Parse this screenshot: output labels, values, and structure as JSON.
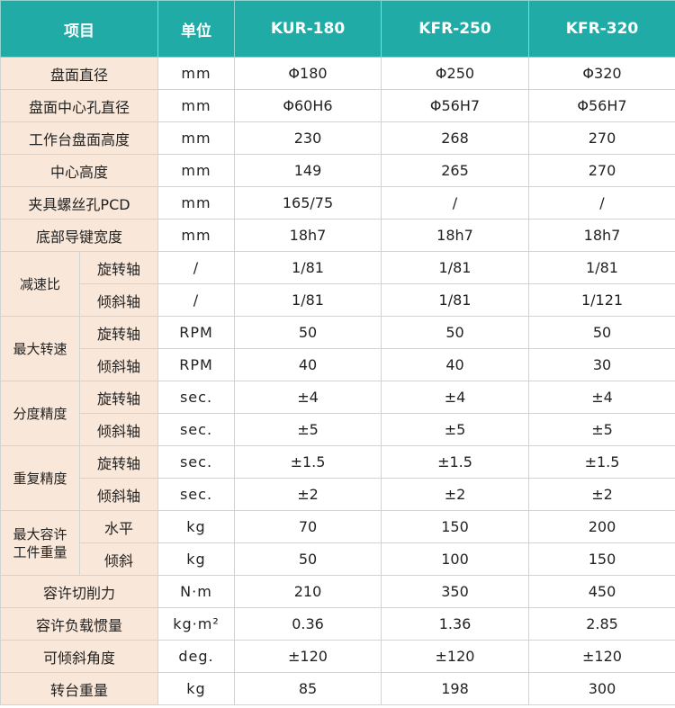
{
  "header": {
    "item": "项目",
    "unit": "单位",
    "models": [
      "KUR-180",
      "KFR-250",
      "KFR-320"
    ]
  },
  "rows": [
    {
      "label": "盘面直径",
      "unit": "mm",
      "values": [
        "Φ180",
        "Φ250",
        "Φ320"
      ]
    },
    {
      "label": "盘面中心孔直径",
      "unit": "mm",
      "values": [
        "Φ60H6",
        "Φ56H7",
        "Φ56H7"
      ]
    },
    {
      "label": "工作台盘面高度",
      "unit": "mm",
      "values": [
        "230",
        "268",
        "270"
      ]
    },
    {
      "label": "中心高度",
      "unit": "mm",
      "values": [
        "149",
        "265",
        "270"
      ]
    },
    {
      "label": "夹具螺丝孔PCD",
      "unit": "mm",
      "values": [
        "165/75",
        "/",
        "/"
      ]
    },
    {
      "label": "底部导键宽度",
      "unit": "mm",
      "values": [
        "18h7",
        "18h7",
        "18h7"
      ]
    }
  ],
  "groups": [
    {
      "label": "减速比",
      "sub": [
        {
          "label": "旋转轴",
          "unit": "/",
          "values": [
            "1/81",
            "1/81",
            "1/81"
          ]
        },
        {
          "label": "倾斜轴",
          "unit": "/",
          "values": [
            "1/81",
            "1/81",
            "1/121"
          ]
        }
      ]
    },
    {
      "label": "最大转速",
      "sub": [
        {
          "label": "旋转轴",
          "unit": "RPM",
          "values": [
            "50",
            "50",
            "50"
          ]
        },
        {
          "label": "倾斜轴",
          "unit": "RPM",
          "values": [
            "40",
            "40",
            "30"
          ]
        }
      ]
    },
    {
      "label": "分度精度",
      "sub": [
        {
          "label": "旋转轴",
          "unit": "sec.",
          "values": [
            "±4",
            "±4",
            "±4"
          ]
        },
        {
          "label": "倾斜轴",
          "unit": "sec.",
          "values": [
            "±5",
            "±5",
            "±5"
          ]
        }
      ]
    },
    {
      "label": "重复精度",
      "sub": [
        {
          "label": "旋转轴",
          "unit": "sec.",
          "values": [
            "±1.5",
            "±1.5",
            "±1.5"
          ]
        },
        {
          "label": "倾斜轴",
          "unit": "sec.",
          "values": [
            "±2",
            "±2",
            "±2"
          ]
        }
      ]
    },
    {
      "label_lines": [
        "最大容许",
        "工件重量"
      ],
      "sub": [
        {
          "label": "水平",
          "unit": "kg",
          "values": [
            "70",
            "150",
            "200"
          ]
        },
        {
          "label": "倾斜",
          "unit": "kg",
          "values": [
            "50",
            "100",
            "150"
          ]
        }
      ]
    }
  ],
  "rows_bottom": [
    {
      "label": "容许切削力",
      "unit": "N·m",
      "values": [
        "210",
        "350",
        "450"
      ]
    },
    {
      "label": "容许负载惯量",
      "unit": "kg·m²",
      "values": [
        "0.36",
        "1.36",
        "2.85"
      ]
    },
    {
      "label": "可倾斜角度",
      "unit": "deg.",
      "values": [
        "±120",
        "±120",
        "±120"
      ]
    },
    {
      "label": "转台重量",
      "unit": "kg",
      "values": [
        "85",
        "198",
        "300"
      ]
    }
  ]
}
